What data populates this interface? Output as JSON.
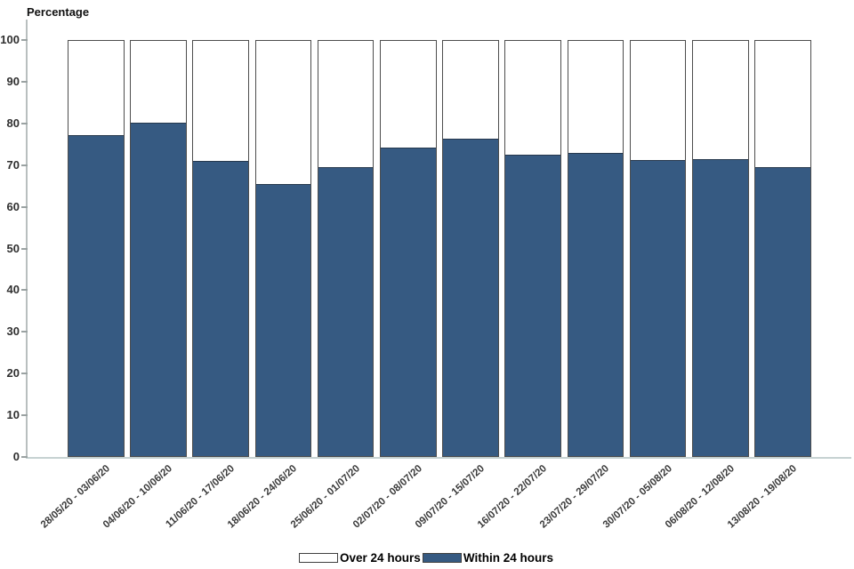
{
  "chart_data": {
    "type": "bar",
    "stacked": true,
    "title": "",
    "ylabel": "Percentage",
    "xlabel": "",
    "ylim": [
      0,
      100
    ],
    "yticks": [
      0,
      10,
      20,
      30,
      40,
      50,
      60,
      70,
      80,
      90,
      100
    ],
    "grid": false,
    "legend_position": "bottom",
    "categories": [
      "28/05/20 - 03/06/20",
      "04/06/20 - 10/06/20",
      "11/06/20 - 17/06/20",
      "18/06/20 - 24/06/20",
      "25/06/20 - 01/07/20",
      "02/07/20 - 08/07/20",
      "09/07/20 - 15/07/20",
      "16/07/20 - 22/07/20",
      "23/07/20 - 29/07/20",
      "30/07/20 - 05/08/20",
      "06/08/20 - 12/08/20",
      "13/08/20 - 19/08/20"
    ],
    "series": [
      {
        "name": "Within 24 hours",
        "color": "#365a82",
        "values": [
          77.4,
          80.3,
          71.2,
          65.6,
          69.6,
          74.3,
          76.4,
          72.7,
          73.0,
          71.4,
          71.6,
          69.6
        ]
      },
      {
        "name": "Over 24 hours",
        "color": "#ffffff",
        "values": [
          22.6,
          19.7,
          28.8,
          34.4,
          30.4,
          25.7,
          23.6,
          27.3,
          27.0,
          28.6,
          28.4,
          30.4
        ]
      }
    ],
    "legend": [
      {
        "label": "Over 24 hours",
        "swatch_color": "#ffffff"
      },
      {
        "label": "Within 24 hours",
        "swatch_color": "#365a82"
      }
    ]
  }
}
